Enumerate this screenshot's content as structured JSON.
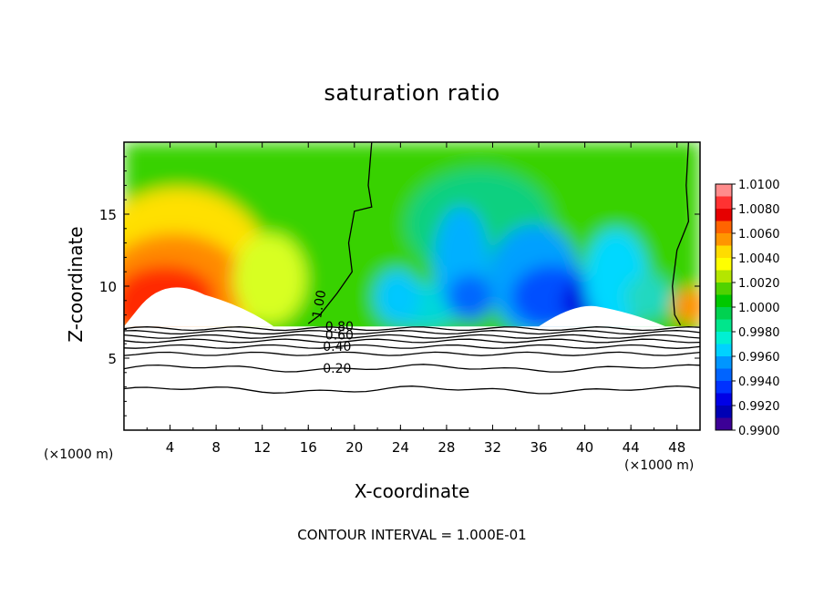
{
  "chart_data": {
    "type": "heatmap",
    "title": "saturation ratio",
    "xlabel": "X-coordinate",
    "ylabel": "Z-coordinate",
    "x_unit": "(×1000 m)",
    "xlim": [
      0,
      50
    ],
    "ylim": [
      0,
      20
    ],
    "x_ticks": [
      "4",
      "8",
      "12",
      "16",
      "20",
      "24",
      "28",
      "32",
      "36",
      "40",
      "44",
      "48"
    ],
    "y_ticks": [
      "5",
      "10",
      "15"
    ],
    "colorbar": {
      "range": [
        0.99,
        1.01
      ],
      "labels": [
        "1.0100",
        "1.0080",
        "1.0060",
        "1.0040",
        "1.0020",
        "1.0000",
        "0.9980",
        "0.9960",
        "0.9940",
        "0.9920",
        "0.9900"
      ],
      "colors": [
        "#ff8c8c",
        "#ff3232",
        "#e60000",
        "#ff6400",
        "#ff9600",
        "#ffdc00",
        "#ffff00",
        "#b4e600",
        "#50d200",
        "#00c800",
        "#00d250",
        "#00e68c",
        "#00f0d2",
        "#00d2ff",
        "#0096ff",
        "#0064ff",
        "#0032ff",
        "#0000e6",
        "#0000b4",
        "#3c0096"
      ]
    },
    "contour_labels": [
      "1.00",
      "0.80",
      "0.60",
      "0.40",
      "0.20"
    ],
    "contour_interval_text": "CONTOUR INTERVAL = 1.000E-01"
  }
}
